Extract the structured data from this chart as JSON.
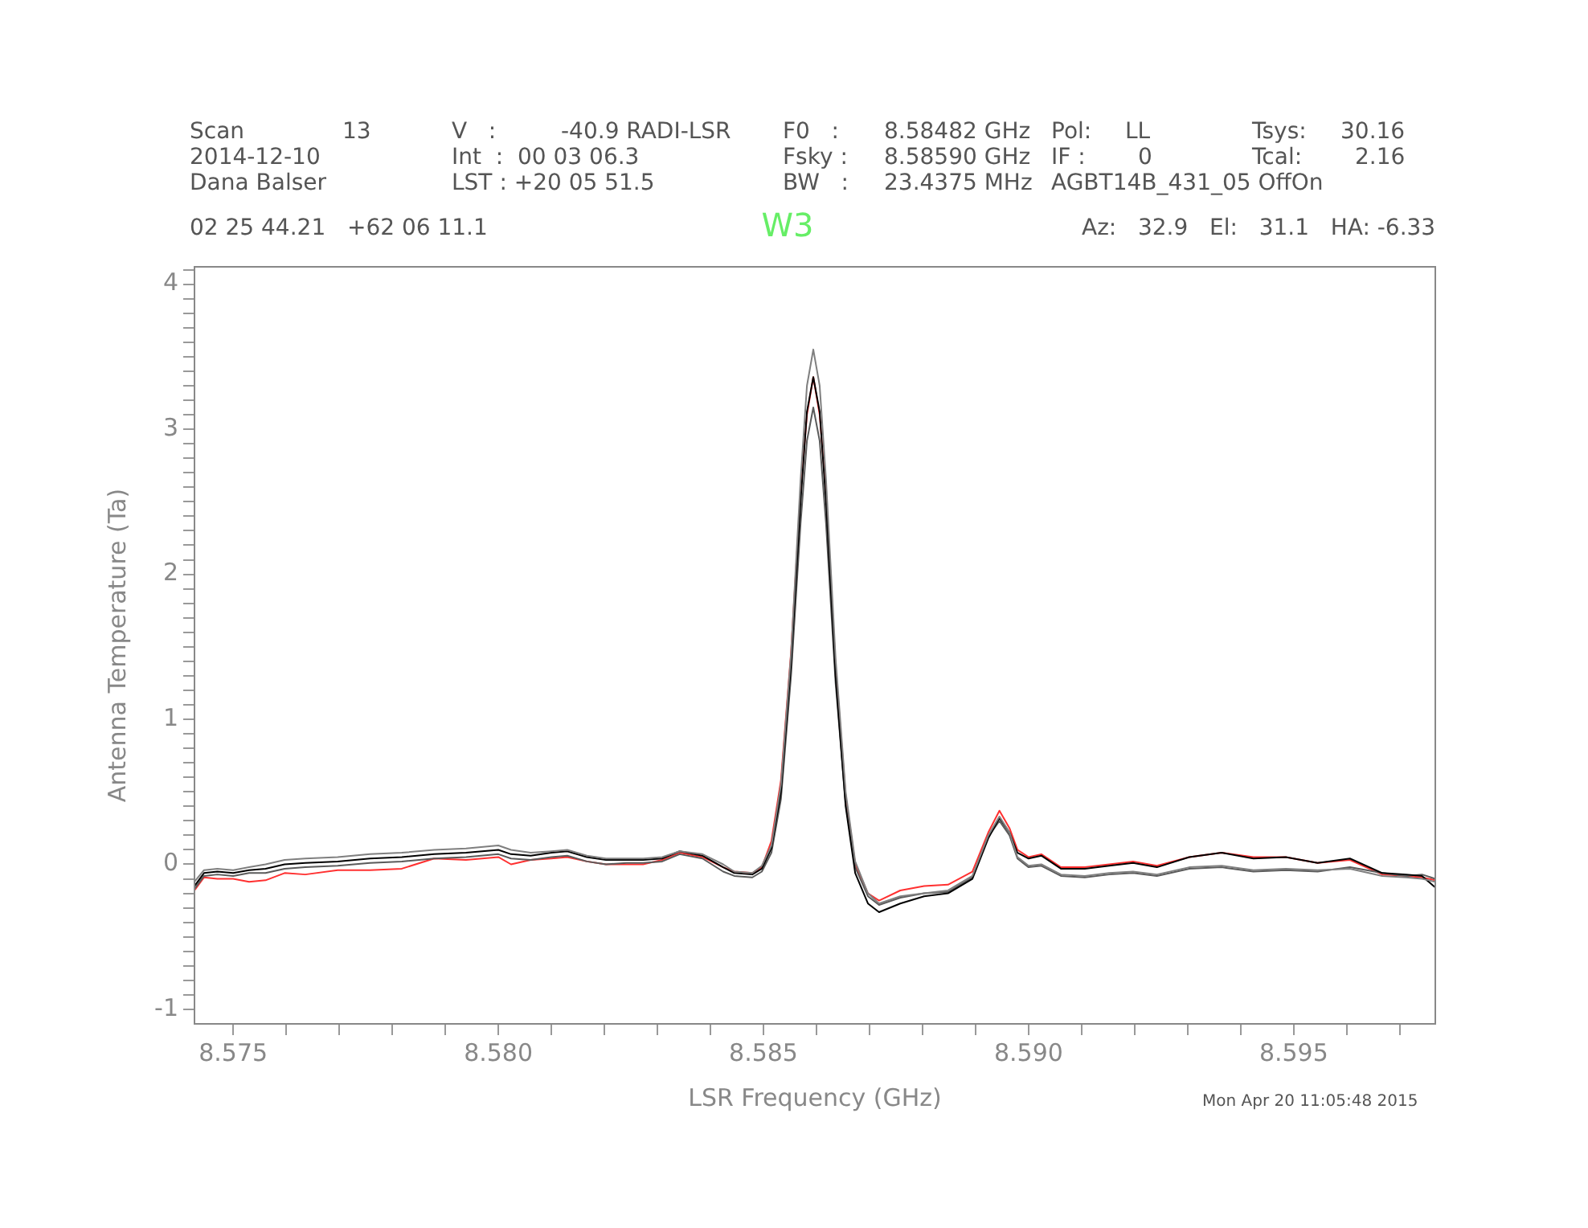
{
  "chart_data": {
    "type": "line",
    "title": "W3",
    "xlabel": "LSR Frequency (GHz)",
    "ylabel": "Antenna Temperature (Ta)",
    "annotations": [
      "Scan",
      "13",
      "V   :",
      "-40.9 RADI-LSR",
      "F0   :",
      "8.58482 GHz",
      "Pol:",
      "LL",
      "Tsys:",
      "30.16",
      "2014-12-10",
      "Int  :  00 03 06.3",
      "Fsky :",
      "8.58590 GHz",
      "IF :",
      "0",
      "Tcal:",
      "2.16",
      "Dana Balser",
      "LST : +20 05 51.5",
      "BW   :",
      "23.4375 MHz",
      "AGBT14B_431_05 OffOn",
      "02 25 44.21   +62 06 11.1",
      "Az:   32.9   El:   31.1   HA: -6.33",
      "Mon Apr 20 11:05:48 2015"
    ],
    "x": [
      8.57427,
      8.57445,
      8.5747,
      8.575,
      8.5753,
      8.57561,
      8.57597,
      8.57636,
      8.57697,
      8.57758,
      8.57818,
      8.57879,
      8.57939,
      8.58,
      8.58024,
      8.58061,
      8.581,
      8.5813,
      8.58167,
      8.58203,
      8.58242,
      8.58273,
      8.58309,
      8.58342,
      8.58385,
      8.58424,
      8.58445,
      8.58479,
      8.58497,
      8.58515,
      8.58533,
      8.58552,
      8.5857,
      8.58582,
      8.58594,
      8.58606,
      8.58618,
      8.58636,
      8.58655,
      8.58673,
      8.58697,
      8.58718,
      8.58758,
      8.58803,
      8.58848,
      8.58894,
      8.58924,
      8.58945,
      8.58964,
      8.58979,
      8.59,
      8.59024,
      8.59061,
      8.59106,
      8.59152,
      8.59197,
      8.59242,
      8.59303,
      8.59364,
      8.59424,
      8.59485,
      8.59545,
      8.59606,
      8.59667,
      8.59712,
      8.59742,
      8.59767
    ],
    "series": [
      {
        "color": "#7f7f7f",
        "values": [
          -0.12,
          -0.04,
          -0.03,
          -0.04,
          -0.02,
          0.0,
          0.03,
          0.04,
          0.05,
          0.07,
          0.08,
          0.1,
          0.11,
          0.13,
          0.1,
          0.08,
          0.09,
          0.1,
          0.06,
          0.04,
          0.04,
          0.04,
          0.05,
          0.09,
          0.07,
          0.0,
          -0.05,
          -0.06,
          -0.01,
          0.13,
          0.55,
          1.45,
          2.65,
          3.3,
          3.55,
          3.3,
          2.65,
          1.42,
          0.5,
          0.02,
          -0.2,
          -0.27,
          -0.22,
          -0.2,
          -0.18,
          -0.08,
          0.2,
          0.33,
          0.22,
          0.05,
          -0.01,
          0.0,
          -0.07,
          -0.08,
          -0.06,
          -0.05,
          -0.07,
          -0.02,
          -0.01,
          -0.04,
          -0.03,
          -0.04,
          -0.03,
          -0.08,
          -0.09,
          -0.1,
          -0.12
        ]
      },
      {
        "color": "#000000",
        "values": [
          -0.15,
          -0.06,
          -0.05,
          -0.06,
          -0.04,
          -0.03,
          0.0,
          0.01,
          0.02,
          0.04,
          0.05,
          0.07,
          0.08,
          0.1,
          0.07,
          0.06,
          0.08,
          0.09,
          0.05,
          0.03,
          0.03,
          0.03,
          0.04,
          0.09,
          0.06,
          -0.02,
          -0.06,
          -0.07,
          -0.03,
          0.11,
          0.5,
          1.38,
          2.5,
          3.12,
          3.36,
          3.12,
          2.5,
          1.3,
          0.4,
          -0.06,
          -0.27,
          -0.33,
          -0.27,
          -0.22,
          -0.2,
          -0.1,
          0.18,
          0.32,
          0.22,
          0.08,
          0.04,
          0.06,
          -0.03,
          -0.03,
          -0.01,
          0.01,
          -0.02,
          0.05,
          0.08,
          0.04,
          0.05,
          0.01,
          0.04,
          -0.06,
          -0.07,
          -0.08,
          -0.16
        ]
      },
      {
        "color": "#5a5a5a",
        "values": [
          -0.17,
          -0.08,
          -0.07,
          -0.08,
          -0.06,
          -0.06,
          -0.03,
          -0.02,
          -0.01,
          0.01,
          0.02,
          0.04,
          0.05,
          0.07,
          0.04,
          0.03,
          0.05,
          0.06,
          0.02,
          0.0,
          0.01,
          0.01,
          0.02,
          0.07,
          0.04,
          -0.05,
          -0.08,
          -0.09,
          -0.05,
          0.08,
          0.45,
          1.3,
          2.35,
          2.92,
          3.15,
          2.92,
          2.35,
          1.25,
          0.42,
          -0.02,
          -0.22,
          -0.28,
          -0.23,
          -0.2,
          -0.19,
          -0.09,
          0.19,
          0.3,
          0.2,
          0.04,
          -0.02,
          -0.01,
          -0.08,
          -0.09,
          -0.07,
          -0.06,
          -0.08,
          -0.03,
          -0.02,
          -0.05,
          -0.04,
          -0.05,
          -0.02,
          -0.06,
          -0.08,
          -0.07,
          -0.1
        ]
      },
      {
        "color": "#ff3030",
        "values": [
          -0.18,
          -0.09,
          -0.1,
          -0.1,
          -0.12,
          -0.11,
          -0.06,
          -0.07,
          -0.04,
          -0.04,
          -0.03,
          0.04,
          0.03,
          0.05,
          0.0,
          0.03,
          0.04,
          0.05,
          0.02,
          0.0,
          0.0,
          0.0,
          0.03,
          0.08,
          0.05,
          -0.02,
          -0.05,
          -0.06,
          -0.02,
          0.16,
          0.58,
          1.46,
          2.56,
          3.1,
          3.36,
          3.1,
          2.56,
          1.36,
          0.47,
          0.0,
          -0.2,
          -0.25,
          -0.18,
          -0.15,
          -0.14,
          -0.05,
          0.22,
          0.37,
          0.25,
          0.1,
          0.05,
          0.07,
          -0.02,
          -0.02,
          0.0,
          0.02,
          -0.01,
          0.05,
          0.08,
          0.05,
          0.05,
          0.01,
          0.03,
          -0.07,
          -0.08,
          -0.09,
          -0.11
        ]
      }
    ],
    "xlim": [
      8.57427,
      8.59767
    ],
    "ylim": [
      -1.1,
      4.12
    ],
    "xticks": [
      {
        "value": 8.575,
        "label": "8.575"
      },
      {
        "value": 8.576,
        "label": null
      },
      {
        "value": 8.577,
        "label": null
      },
      {
        "value": 8.578,
        "label": null
      },
      {
        "value": 8.579,
        "label": null
      },
      {
        "value": 8.58,
        "label": "8.580"
      },
      {
        "value": 8.581,
        "label": null
      },
      {
        "value": 8.582,
        "label": null
      },
      {
        "value": 8.583,
        "label": null
      },
      {
        "value": 8.584,
        "label": null
      },
      {
        "value": 8.585,
        "label": "8.585"
      },
      {
        "value": 8.586,
        "label": null
      },
      {
        "value": 8.587,
        "label": null
      },
      {
        "value": 8.588,
        "label": null
      },
      {
        "value": 8.589,
        "label": null
      },
      {
        "value": 8.59,
        "label": "8.590"
      },
      {
        "value": 8.591,
        "label": null
      },
      {
        "value": 8.592,
        "label": null
      },
      {
        "value": 8.593,
        "label": null
      },
      {
        "value": 8.594,
        "label": null
      },
      {
        "value": 8.595,
        "label": "8.595"
      },
      {
        "value": 8.596,
        "label": null
      },
      {
        "value": 8.597,
        "label": null
      }
    ],
    "yticks": [
      {
        "value": -1,
        "label": "-1"
      },
      {
        "value": -0.9,
        "label": null
      },
      {
        "value": -0.8,
        "label": null
      },
      {
        "value": -0.7,
        "label": null
      },
      {
        "value": -0.6,
        "label": null
      },
      {
        "value": -0.5,
        "label": null
      },
      {
        "value": -0.4,
        "label": null
      },
      {
        "value": -0.3,
        "label": null
      },
      {
        "value": -0.2,
        "label": null
      },
      {
        "value": -0.1,
        "label": null
      },
      0,
      {
        "value": 0.1,
        "label": null
      },
      {
        "value": 0.2,
        "label": null
      },
      {
        "value": 0.3,
        "label": null
      },
      {
        "value": 0.4,
        "label": null
      },
      {
        "value": 0.5,
        "label": null
      },
      {
        "value": 0.6,
        "label": null
      },
      {
        "value": 0.7,
        "label": null
      },
      {
        "value": 0.8,
        "label": null
      },
      {
        "value": 0.9,
        "label": null
      },
      1,
      {
        "value": 1.1,
        "label": null
      },
      {
        "value": 1.2,
        "label": null
      },
      {
        "value": 1.3,
        "label": null
      },
      {
        "value": 1.4,
        "label": null
      },
      {
        "value": 1.5,
        "label": null
      },
      {
        "value": 1.6,
        "label": null
      },
      {
        "value": 1.7,
        "label": null
      },
      {
        "value": 1.8,
        "label": null
      },
      {
        "value": 1.9,
        "label": null
      },
      2,
      {
        "value": 2.1,
        "label": null
      },
      {
        "value": 2.2,
        "label": null
      },
      {
        "value": 2.3,
        "label": null
      },
      {
        "value": 2.4,
        "label": null
      },
      {
        "value": 2.5,
        "label": null
      },
      {
        "value": 2.6,
        "label": null
      },
      {
        "value": 2.7,
        "label": null
      },
      {
        "value": 2.8,
        "label": null
      },
      {
        "value": 2.9,
        "label": null
      },
      3,
      {
        "value": 3.1,
        "label": null
      },
      {
        "value": 3.2,
        "label": null
      },
      {
        "value": 3.3,
        "label": null
      },
      {
        "value": 3.4,
        "label": null
      },
      {
        "value": 3.5,
        "label": null
      },
      {
        "value": 3.6,
        "label": null
      },
      {
        "value": 3.7,
        "label": null
      },
      {
        "value": 3.8,
        "label": null
      },
      {
        "value": 3.9,
        "label": null
      },
      4,
      {
        "value": 4.1,
        "label": null
      }
    ]
  }
}
